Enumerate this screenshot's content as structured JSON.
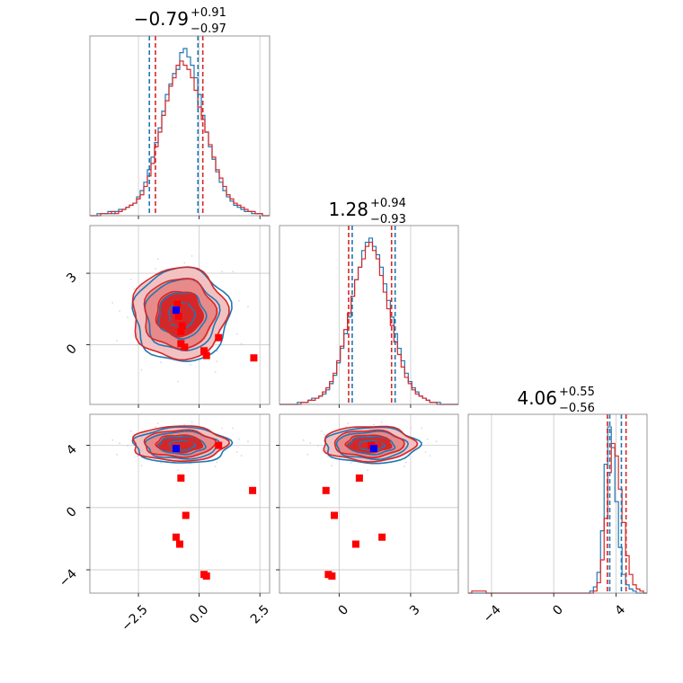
{
  "chart_data": {
    "type": "corner",
    "series_colors": {
      "blue": "#1f77b4",
      "red": "#d62728",
      "marker_red": "#ff0000",
      "marker_blue": "#0000ff"
    },
    "titles": [
      {
        "median": "−0.79",
        "upper": "+0.91",
        "lower": "−0.97"
      },
      {
        "median": "1.28",
        "upper": "+0.94",
        "lower": "−0.93"
      },
      {
        "median": "4.06",
        "upper": "+0.55",
        "lower": "−0.56"
      }
    ],
    "axis_ranges": {
      "p0": [
        -4.5,
        2.9
      ],
      "p1": [
        -2.5,
        5.0
      ],
      "p2": [
        -5.5,
        6.0
      ]
    },
    "ticks": {
      "p0": {
        "values": [
          -2.5,
          0.0,
          2.5
        ],
        "labels": [
          "−2.5",
          "0.0",
          "2.5"
        ]
      },
      "p1": {
        "values": [
          0,
          3
        ],
        "labels": [
          "0",
          "3"
        ]
      },
      "p2": {
        "values": [
          -4,
          0,
          4
        ],
        "labels": [
          "−4",
          "0",
          "4"
        ]
      }
    },
    "grid": true,
    "quantiles": {
      "p0": {
        "blue": [
          -2.05,
          -0.05
        ],
        "red": [
          -1.8,
          0.15
        ]
      },
      "p1": {
        "blue": [
          0.55,
          2.35
        ],
        "red": [
          0.4,
          2.2
        ]
      },
      "p2": {
        "blue": [
          3.6,
          4.35
        ],
        "red": [
          3.45,
          4.65
        ]
      }
    },
    "truth_blue": {
      "p0": -0.95,
      "p1": 1.45,
      "p2": 3.8
    },
    "red_points": [
      {
        "p0": -0.9,
        "p1": 1.7
      },
      {
        "p0": -0.85,
        "p1": 1.2
      },
      {
        "p0": -0.7,
        "p1": 0.8
      },
      {
        "p0": -0.75,
        "p1": 0.55
      },
      {
        "p0": -0.6,
        "p1": -0.1
      },
      {
        "p0": -0.75,
        "p1": 0.05
      },
      {
        "p0": 0.2,
        "p1": -0.25
      },
      {
        "p0": 0.3,
        "p1": -0.45
      },
      {
        "p0": 0.8,
        "p1": 0.3
      },
      {
        "p0": 2.25,
        "p1": -0.55
      }
    ],
    "red_points_p2": [
      {
        "p0": -0.75,
        "p1": 0.85,
        "p2": 1.9
      },
      {
        "p0": 2.2,
        "p1": -0.55,
        "p2": 1.1
      },
      {
        "p0": -0.55,
        "p1": -0.2,
        "p2": -0.5
      },
      {
        "p0": -0.95,
        "p1": 1.8,
        "p2": -1.9
      },
      {
        "p0": -0.8,
        "p1": 0.7,
        "p2": -2.35
      },
      {
        "p0": 0.2,
        "p1": -0.45,
        "p2": -4.3
      },
      {
        "p0": 0.3,
        "p1": -0.3,
        "p2": -4.4
      },
      {
        "p0": 0.8,
        "p1": 1.35,
        "p2": 4.0
      }
    ],
    "hist_p0_blue": [
      0,
      0,
      1,
      1,
      1,
      2,
      1,
      2,
      3,
      3,
      4,
      5,
      6,
      9,
      12,
      16,
      22,
      28,
      35,
      42,
      50,
      58,
      63,
      68,
      70,
      78,
      80,
      76,
      72,
      66,
      58,
      48,
      40,
      33,
      27,
      21,
      16,
      12,
      9,
      7,
      5,
      4,
      3,
      2,
      2,
      1,
      1,
      1,
      0,
      0
    ],
    "hist_p0_red": [
      0,
      0,
      0,
      1,
      1,
      1,
      2,
      1,
      2,
      3,
      4,
      5,
      6,
      8,
      10,
      14,
      19,
      25,
      33,
      40,
      48,
      55,
      62,
      66,
      72,
      74,
      72,
      70,
      66,
      60,
      52,
      46,
      40,
      34,
      28,
      22,
      18,
      14,
      10,
      8,
      6,
      5,
      4,
      3,
      2,
      2,
      1,
      1,
      0,
      0
    ],
    "hist_p1_blue": [
      0,
      0,
      0,
      0,
      0,
      1,
      1,
      1,
      2,
      3,
      3,
      4,
      5,
      7,
      10,
      14,
      20,
      27,
      34,
      42,
      52,
      60,
      66,
      74,
      78,
      80,
      76,
      72,
      66,
      58,
      50,
      42,
      34,
      27,
      21,
      15,
      11,
      8,
      6,
      4,
      3,
      2,
      1,
      1,
      1,
      0,
      0,
      0,
      0,
      0
    ],
    "hist_p1_red": [
      0,
      0,
      0,
      0,
      0,
      0,
      1,
      1,
      2,
      2,
      3,
      4,
      6,
      8,
      11,
      15,
      21,
      28,
      36,
      44,
      52,
      60,
      66,
      70,
      76,
      78,
      74,
      70,
      62,
      54,
      46,
      38,
      30,
      24,
      18,
      13,
      10,
      7,
      5,
      4,
      3,
      2,
      1,
      1,
      0,
      0,
      0,
      0,
      0,
      0
    ],
    "hist_p2_blue": [
      0,
      0,
      0,
      0,
      0,
      0,
      0,
      0,
      0,
      0,
      0,
      0,
      0,
      0,
      0,
      0,
      0,
      0,
      0,
      0,
      0,
      0,
      0,
      0,
      0,
      0,
      0,
      0,
      0,
      0,
      0,
      0,
      0,
      0,
      1,
      3,
      10,
      30,
      62,
      80,
      70,
      44,
      22,
      9,
      4,
      2,
      1,
      0,
      0,
      0
    ],
    "hist_p2_red": [
      0,
      1,
      1,
      1,
      1,
      0,
      0,
      0,
      0,
      0,
      0,
      0,
      0,
      0,
      0,
      0,
      0,
      0,
      0,
      0,
      0,
      0,
      0,
      0,
      0,
      0,
      0,
      0,
      0,
      0,
      0,
      0,
      0,
      0,
      0,
      1,
      5,
      16,
      36,
      58,
      72,
      66,
      50,
      34,
      18,
      9,
      4,
      2,
      1,
      0
    ],
    "contours": {
      "p0p1": {
        "center": [
          -0.79,
          1.28
        ],
        "sigma": [
          0.94,
          0.94
        ]
      },
      "p0p2": {
        "center": [
          -0.79,
          4.06
        ],
        "sigma": [
          0.94,
          0.55
        ]
      },
      "p1p2": {
        "center": [
          1.28,
          4.06
        ],
        "sigma": [
          0.94,
          0.55
        ]
      }
    }
  }
}
